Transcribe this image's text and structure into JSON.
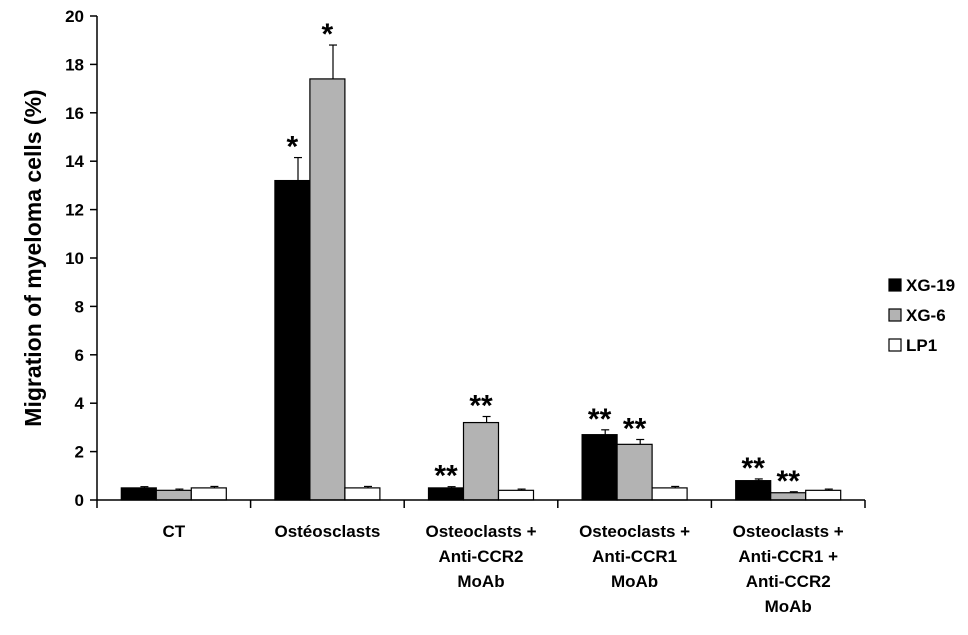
{
  "chart_data": {
    "type": "bar",
    "ylabel": "Migration of myeloma cells (%)",
    "xlabel": "",
    "title": "",
    "ylim": [
      0,
      20
    ],
    "yticks": [
      0,
      2,
      4,
      6,
      8,
      10,
      12,
      14,
      16,
      18,
      20
    ],
    "grid": false,
    "legend_position": "right",
    "categories": [
      [
        "CT"
      ],
      [
        "Ostéosclasts"
      ],
      [
        "Osteoclasts +",
        "Anti-CCR2",
        "MoAb"
      ],
      [
        "Osteoclasts +",
        "Anti-CCR1",
        "MoAb"
      ],
      [
        "Osteoclasts +",
        "Anti-CCR1 +",
        "Anti-CCR2",
        "MoAb"
      ]
    ],
    "series": [
      {
        "name": "XG-19",
        "color": "#000000",
        "values": [
          0.5,
          13.2,
          0.5,
          2.7,
          0.8
        ],
        "errors": [
          0.05,
          0.95,
          0.05,
          0.2,
          0.07
        ],
        "annotations": [
          "",
          "*",
          "**",
          "**",
          "**"
        ]
      },
      {
        "name": "XG-6",
        "color": "#b3b3b3",
        "values": [
          0.4,
          17.4,
          3.2,
          2.3,
          0.3
        ],
        "errors": [
          0.05,
          1.4,
          0.25,
          0.2,
          0.04
        ],
        "annotations": [
          "",
          "*",
          "**",
          "**",
          "**"
        ]
      },
      {
        "name": "LP1",
        "color": "#ffffff",
        "values": [
          0.5,
          0.5,
          0.4,
          0.5,
          0.4
        ],
        "errors": [
          0.06,
          0.06,
          0.05,
          0.06,
          0.05
        ],
        "annotations": [
          "",
          "",
          "",
          "",
          ""
        ]
      }
    ]
  }
}
